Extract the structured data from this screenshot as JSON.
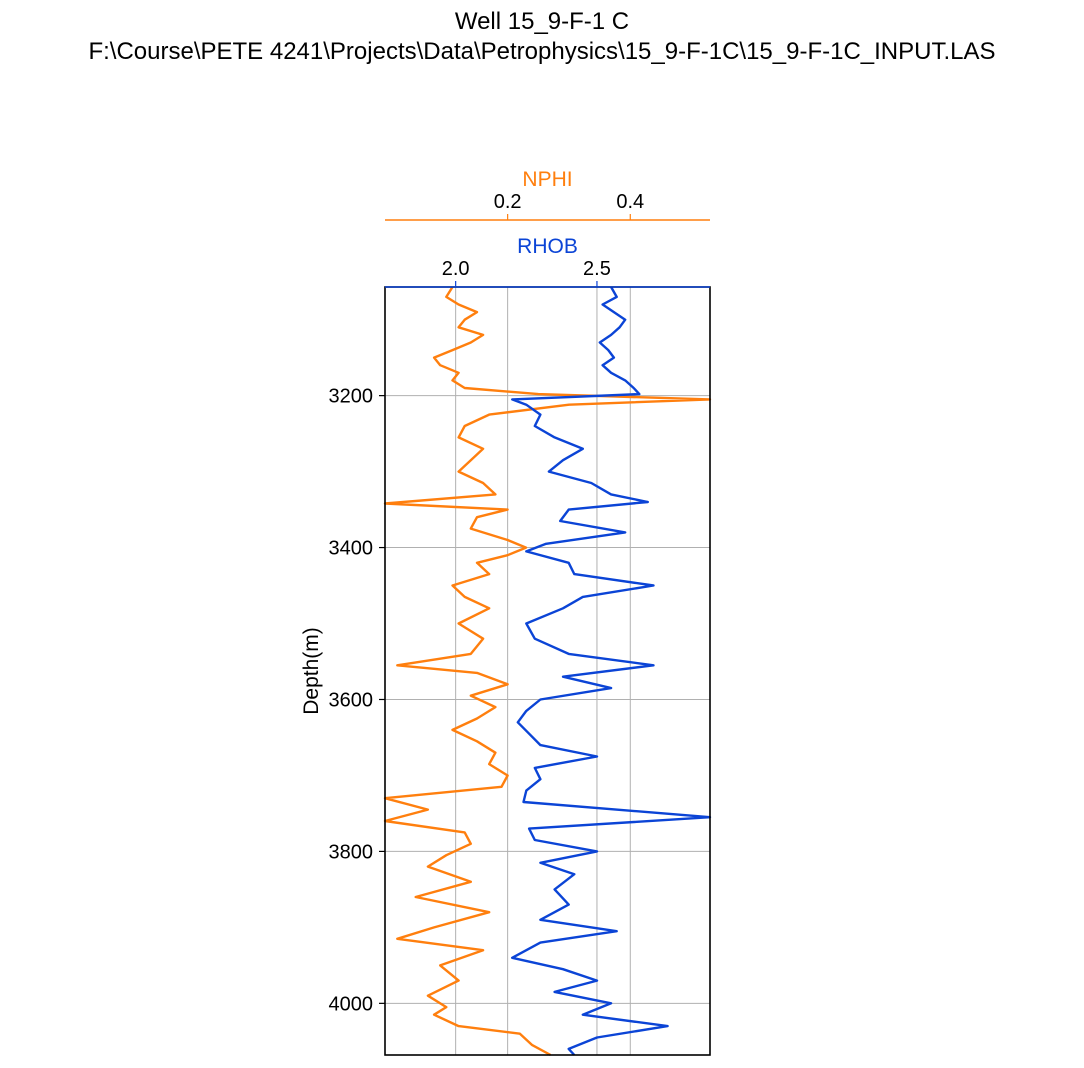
{
  "figure": {
    "title": "Well 15_9-F-1 C",
    "subtitle": "F:\\Course\\PETE 4241\\Projects\\Data\\Petrophysics\\15_9-F-1C\\15_9-F-1C_INPUT.LAS"
  },
  "colors": {
    "nphi": "#ff7f0e",
    "rhob": "#0b44d6",
    "grid": "#b0b0b0",
    "frame": "#000000"
  },
  "chart_data": {
    "type": "line",
    "orientation": "vertical-depth-track",
    "ylabel": "Depth(m)",
    "ylim": [
      4068,
      3057
    ],
    "y_inverted": true,
    "yticks": [
      3200,
      3400,
      3600,
      3800,
      4000
    ],
    "grid": true,
    "series": [
      {
        "name": "NPHI",
        "axis": "top-outer",
        "xlim": [
          -0.0,
          0.53
        ],
        "xticks": [
          0.2,
          0.4
        ],
        "xtick_labels": [
          "0.2",
          "0.4"
        ],
        "x_gridlines": [
          0.2,
          0.4
        ],
        "points": [
          [
            3057,
            0.11
          ],
          [
            3070,
            0.1
          ],
          [
            3080,
            0.12
          ],
          [
            3090,
            0.15
          ],
          [
            3100,
            0.13
          ],
          [
            3110,
            0.12
          ],
          [
            3120,
            0.16
          ],
          [
            3130,
            0.14
          ],
          [
            3140,
            0.11
          ],
          [
            3150,
            0.08
          ],
          [
            3160,
            0.09
          ],
          [
            3170,
            0.12
          ],
          [
            3180,
            0.11
          ],
          [
            3190,
            0.13
          ],
          [
            3198,
            0.25
          ],
          [
            3205,
            0.53
          ],
          [
            3212,
            0.3
          ],
          [
            3225,
            0.17
          ],
          [
            3240,
            0.13
          ],
          [
            3255,
            0.12
          ],
          [
            3270,
            0.16
          ],
          [
            3285,
            0.14
          ],
          [
            3300,
            0.12
          ],
          [
            3315,
            0.16
          ],
          [
            3330,
            0.18
          ],
          [
            3342,
            0.0
          ],
          [
            3350,
            0.2
          ],
          [
            3360,
            0.15
          ],
          [
            3375,
            0.14
          ],
          [
            3390,
            0.2
          ],
          [
            3400,
            0.23
          ],
          [
            3410,
            0.2
          ],
          [
            3420,
            0.15
          ],
          [
            3435,
            0.17
          ],
          [
            3450,
            0.11
          ],
          [
            3465,
            0.13
          ],
          [
            3480,
            0.17
          ],
          [
            3500,
            0.12
          ],
          [
            3520,
            0.16
          ],
          [
            3540,
            0.14
          ],
          [
            3555,
            0.02
          ],
          [
            3565,
            0.15
          ],
          [
            3580,
            0.2
          ],
          [
            3595,
            0.14
          ],
          [
            3610,
            0.18
          ],
          [
            3625,
            0.15
          ],
          [
            3640,
            0.11
          ],
          [
            3655,
            0.15
          ],
          [
            3670,
            0.18
          ],
          [
            3685,
            0.17
          ],
          [
            3700,
            0.2
          ],
          [
            3715,
            0.19
          ],
          [
            3730,
            0.0
          ],
          [
            3745,
            0.07
          ],
          [
            3760,
            0.0
          ],
          [
            3775,
            0.13
          ],
          [
            3790,
            0.14
          ],
          [
            3805,
            0.1
          ],
          [
            3820,
            0.07
          ],
          [
            3840,
            0.14
          ],
          [
            3860,
            0.05
          ],
          [
            3880,
            0.17
          ],
          [
            3900,
            0.08
          ],
          [
            3915,
            0.02
          ],
          [
            3930,
            0.16
          ],
          [
            3950,
            0.09
          ],
          [
            3970,
            0.12
          ],
          [
            3990,
            0.07
          ],
          [
            4005,
            0.1
          ],
          [
            4015,
            0.08
          ],
          [
            4030,
            0.12
          ],
          [
            4040,
            0.22
          ],
          [
            4055,
            0.24
          ],
          [
            4068,
            0.27
          ]
        ]
      },
      {
        "name": "RHOB",
        "axis": "top-inner",
        "xlim": [
          1.75,
          2.9
        ],
        "xticks": [
          2.0,
          2.5
        ],
        "xtick_labels": [
          "2.0",
          "2.5"
        ],
        "x_gridlines": [
          2.0,
          2.5
        ],
        "points": [
          [
            3057,
            2.55
          ],
          [
            3070,
            2.57
          ],
          [
            3080,
            2.52
          ],
          [
            3090,
            2.56
          ],
          [
            3100,
            2.6
          ],
          [
            3110,
            2.58
          ],
          [
            3120,
            2.55
          ],
          [
            3130,
            2.51
          ],
          [
            3140,
            2.54
          ],
          [
            3150,
            2.56
          ],
          [
            3160,
            2.52
          ],
          [
            3170,
            2.55
          ],
          [
            3180,
            2.6
          ],
          [
            3190,
            2.63
          ],
          [
            3198,
            2.65
          ],
          [
            3205,
            2.2
          ],
          [
            3212,
            2.25
          ],
          [
            3225,
            2.3
          ],
          [
            3240,
            2.28
          ],
          [
            3255,
            2.35
          ],
          [
            3270,
            2.45
          ],
          [
            3285,
            2.38
          ],
          [
            3300,
            2.33
          ],
          [
            3315,
            2.48
          ],
          [
            3330,
            2.55
          ],
          [
            3340,
            2.68
          ],
          [
            3350,
            2.4
          ],
          [
            3365,
            2.37
          ],
          [
            3380,
            2.6
          ],
          [
            3395,
            2.32
          ],
          [
            3405,
            2.25
          ],
          [
            3420,
            2.4
          ],
          [
            3435,
            2.42
          ],
          [
            3450,
            2.7
          ],
          [
            3465,
            2.45
          ],
          [
            3480,
            2.38
          ],
          [
            3500,
            2.25
          ],
          [
            3520,
            2.28
          ],
          [
            3540,
            2.4
          ],
          [
            3555,
            2.7
          ],
          [
            3570,
            2.38
          ],
          [
            3585,
            2.55
          ],
          [
            3600,
            2.3
          ],
          [
            3615,
            2.25
          ],
          [
            3630,
            2.22
          ],
          [
            3645,
            2.26
          ],
          [
            3660,
            2.3
          ],
          [
            3675,
            2.5
          ],
          [
            3690,
            2.28
          ],
          [
            3705,
            2.3
          ],
          [
            3720,
            2.25
          ],
          [
            3735,
            2.24
          ],
          [
            3755,
            2.9
          ],
          [
            3770,
            2.26
          ],
          [
            3785,
            2.28
          ],
          [
            3800,
            2.5
          ],
          [
            3815,
            2.3
          ],
          [
            3830,
            2.42
          ],
          [
            3850,
            2.35
          ],
          [
            3870,
            2.4
          ],
          [
            3890,
            2.3
          ],
          [
            3905,
            2.57
          ],
          [
            3920,
            2.3
          ],
          [
            3940,
            2.2
          ],
          [
            3955,
            2.38
          ],
          [
            3970,
            2.5
          ],
          [
            3985,
            2.35
          ],
          [
            4000,
            2.55
          ],
          [
            4015,
            2.45
          ],
          [
            4030,
            2.75
          ],
          [
            4045,
            2.5
          ],
          [
            4060,
            2.4
          ],
          [
            4068,
            2.42
          ]
        ]
      }
    ]
  }
}
